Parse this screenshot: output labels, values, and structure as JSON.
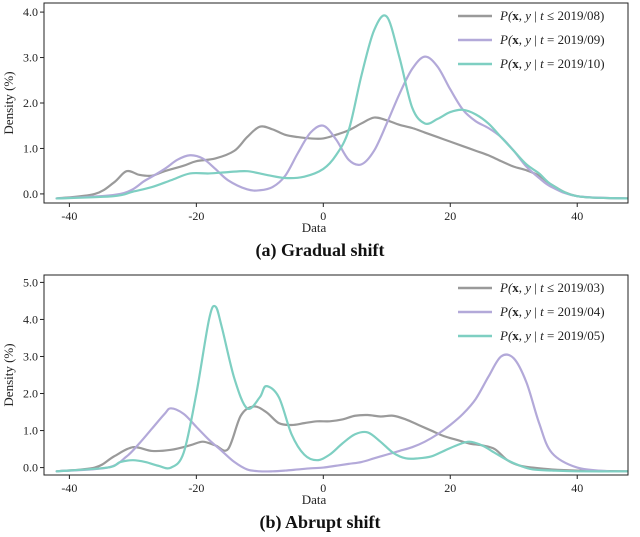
{
  "figure": {
    "panels": [
      {
        "caption": "(a) Gradual shift"
      },
      {
        "caption": "(b) Abrupt shift"
      }
    ]
  },
  "colors": {
    "gray": "#9a9a9a",
    "lavender": "#b3a9d9",
    "teal": "#7ecfc2"
  },
  "chart_data": [
    {
      "type": "line",
      "title": "",
      "caption": "(a) Gradual shift",
      "xlabel": "Data",
      "ylabel": "Density (%)",
      "xlim": [
        -44,
        48
      ],
      "ylim": [
        -0.2,
        4.2
      ],
      "xticks": [
        -40,
        -20,
        0,
        20,
        40
      ],
      "xtick_labels": [
        "-40",
        "-20",
        "0",
        "20",
        "40"
      ],
      "yticks": [
        0.0,
        1.0,
        2.0,
        3.0,
        4.0
      ],
      "ytick_labels": [
        "0.0",
        "1.0",
        "2.0",
        "3.0",
        "4.0"
      ],
      "grid": false,
      "legend_position": "top-right",
      "series": [
        {
          "name": "P(x, y | t ≤ 2019/08)",
          "color": "#9a9a9a",
          "x": [
            -42,
            -36,
            -33,
            -31,
            -29,
            -27,
            -25,
            -22,
            -20,
            -17,
            -14,
            -12,
            -10,
            -8,
            -6,
            -4,
            -2,
            0,
            2,
            4,
            6,
            8,
            10,
            12,
            14,
            16,
            18,
            20,
            22,
            24,
            26,
            28,
            30,
            32,
            34,
            36,
            40,
            48
          ],
          "y": [
            -0.1,
            0.0,
            0.25,
            0.5,
            0.42,
            0.4,
            0.5,
            0.62,
            0.72,
            0.78,
            0.95,
            1.25,
            1.48,
            1.42,
            1.3,
            1.25,
            1.22,
            1.22,
            1.3,
            1.4,
            1.55,
            1.68,
            1.62,
            1.52,
            1.45,
            1.35,
            1.25,
            1.15,
            1.05,
            0.95,
            0.85,
            0.72,
            0.6,
            0.52,
            0.4,
            0.2,
            -0.05,
            -0.1
          ]
        },
        {
          "name": "P(x, y | t = 2019/09)",
          "color": "#b3a9d9",
          "x": [
            -42,
            -32,
            -28,
            -25,
            -23,
            -21,
            -19,
            -17,
            -15,
            -12,
            -10,
            -8,
            -6,
            -4,
            -2,
            0,
            2,
            4,
            6,
            8,
            10,
            12,
            14,
            16,
            18,
            20,
            22,
            24,
            26,
            28,
            30,
            32,
            34,
            36,
            40,
            48
          ],
          "y": [
            -0.1,
            0.0,
            0.3,
            0.55,
            0.75,
            0.85,
            0.78,
            0.55,
            0.3,
            0.1,
            0.08,
            0.15,
            0.4,
            0.9,
            1.35,
            1.5,
            1.2,
            0.75,
            0.65,
            0.95,
            1.55,
            2.2,
            2.75,
            3.02,
            2.8,
            2.3,
            1.85,
            1.6,
            1.45,
            1.25,
            0.95,
            0.6,
            0.35,
            0.15,
            -0.05,
            -0.1
          ]
        },
        {
          "name": "P(x, y | t = 2019/10)",
          "color": "#7ecfc2",
          "x": [
            -42,
            -33,
            -30,
            -27,
            -24,
            -21,
            -18,
            -15,
            -12,
            -9,
            -6,
            -3,
            0,
            2,
            4,
            6,
            8,
            10,
            12,
            14,
            16,
            18,
            20,
            22,
            24,
            26,
            28,
            30,
            32,
            34,
            36,
            40,
            48
          ],
          "y": [
            -0.1,
            -0.05,
            0.05,
            0.15,
            0.3,
            0.45,
            0.45,
            0.48,
            0.5,
            0.42,
            0.35,
            0.38,
            0.55,
            0.85,
            1.4,
            2.6,
            3.6,
            3.9,
            3.0,
            1.9,
            1.55,
            1.65,
            1.8,
            1.85,
            1.75,
            1.55,
            1.25,
            0.95,
            0.65,
            0.45,
            0.2,
            -0.05,
            -0.1
          ]
        }
      ]
    },
    {
      "type": "line",
      "title": "",
      "caption": "(b) Abrupt shift",
      "xlabel": "Data",
      "ylabel": "Density (%)",
      "xlim": [
        -44,
        48
      ],
      "ylim": [
        -0.2,
        5.2
      ],
      "xticks": [
        -40,
        -20,
        0,
        20,
        40
      ],
      "xtick_labels": [
        "-40",
        "-20",
        "0",
        "20",
        "40"
      ],
      "yticks": [
        0.0,
        1.0,
        2.0,
        3.0,
        4.0,
        5.0
      ],
      "ytick_labels": [
        "0.0",
        "1.0",
        "2.0",
        "3.0",
        "4.0",
        "5.0"
      ],
      "grid": false,
      "legend_position": "top-right",
      "series": [
        {
          "name": "P(x, y | t ≤ 2019/03)",
          "color": "#9a9a9a",
          "x": [
            -42,
            -36,
            -33,
            -30,
            -27,
            -24,
            -21,
            -19,
            -17,
            -15,
            -13,
            -11,
            -9,
            -7,
            -5,
            -3,
            -1,
            1,
            3,
            5,
            7,
            9,
            11,
            13,
            15,
            17,
            19,
            21,
            23,
            25,
            27,
            29,
            31,
            33,
            36,
            40,
            48
          ],
          "y": [
            -0.1,
            0.0,
            0.3,
            0.55,
            0.45,
            0.48,
            0.6,
            0.7,
            0.6,
            0.5,
            1.4,
            1.65,
            1.5,
            1.2,
            1.15,
            1.2,
            1.25,
            1.25,
            1.3,
            1.4,
            1.42,
            1.38,
            1.4,
            1.3,
            1.15,
            1.0,
            0.85,
            0.75,
            0.65,
            0.6,
            0.5,
            0.2,
            0.05,
            0.0,
            -0.05,
            -0.08,
            -0.1
          ]
        },
        {
          "name": "P(x, y | t = 2019/04)",
          "color": "#b3a9d9",
          "x": [
            -42,
            -34,
            -31,
            -29,
            -27,
            -25,
            -24,
            -22,
            -20,
            -18,
            -16,
            -14,
            -12,
            -10,
            -8,
            -6,
            -4,
            -2,
            0,
            2,
            4,
            6,
            8,
            10,
            12,
            14,
            16,
            18,
            20,
            22,
            24,
            26,
            28,
            30,
            32,
            34,
            36,
            40,
            45
          ],
          "y": [
            -0.1,
            0.0,
            0.3,
            0.65,
            1.05,
            1.45,
            1.6,
            1.45,
            1.1,
            0.75,
            0.45,
            0.15,
            -0.05,
            -0.1,
            -0.1,
            -0.08,
            -0.05,
            -0.02,
            0.0,
            0.05,
            0.1,
            0.15,
            0.25,
            0.35,
            0.45,
            0.55,
            0.7,
            0.9,
            1.15,
            1.45,
            1.85,
            2.45,
            3.0,
            2.95,
            2.3,
            1.2,
            0.4,
            0.0,
            -0.1
          ]
        },
        {
          "name": "P(x, y | t = 2019/05)",
          "color": "#7ecfc2",
          "x": [
            -42,
            -34,
            -32,
            -30,
            -28,
            -26,
            -24,
            -22,
            -20,
            -18,
            -17,
            -16,
            -14,
            -12,
            -10,
            -9,
            -7,
            -5,
            -3,
            -1,
            1,
            3,
            5,
            7,
            9,
            11,
            13,
            15,
            17,
            19,
            21,
            23,
            25,
            27,
            29,
            31,
            33,
            36,
            40,
            48
          ],
          "y": [
            -0.1,
            0.0,
            0.15,
            0.2,
            0.15,
            0.05,
            0.0,
            0.4,
            2.0,
            4.0,
            4.35,
            3.8,
            2.4,
            1.6,
            1.9,
            2.2,
            1.9,
            0.9,
            0.35,
            0.2,
            0.35,
            0.65,
            0.9,
            0.95,
            0.7,
            0.4,
            0.25,
            0.25,
            0.3,
            0.45,
            0.6,
            0.7,
            0.6,
            0.4,
            0.2,
            0.05,
            -0.05,
            -0.08,
            -0.1,
            -0.1
          ]
        }
      ]
    }
  ]
}
